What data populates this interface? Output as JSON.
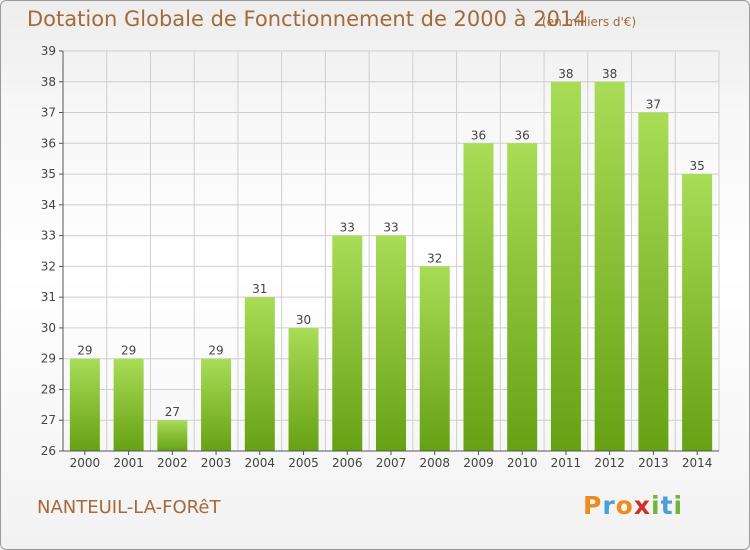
{
  "header": {
    "title": "Dotation Globale de Fonctionnement de 2000 à 2014",
    "unit": "(en milliers d'€)"
  },
  "footer": {
    "commune": "NANTEUIL-LA-FORêT",
    "logo_letters": [
      "P",
      "r",
      "o",
      "x",
      "i",
      "t",
      "i"
    ],
    "logo_colors": [
      "#ef8a1f",
      "#4a9fd8",
      "#ef8a1f",
      "#d2312a",
      "#72b43a",
      "#4a9fd8",
      "#72b43a"
    ]
  },
  "colors": {
    "bar_light": "#a9dc57",
    "bar_dark": "#66a114",
    "grid": "#cfcfcf",
    "text": "#a36a3a"
  },
  "chart_data": {
    "type": "bar",
    "title": "Dotation Globale de Fonctionnement de 2000 à 2014",
    "categories": [
      "2000",
      "2001",
      "2002",
      "2003",
      "2004",
      "2005",
      "2006",
      "2007",
      "2008",
      "2009",
      "2010",
      "2011",
      "2012",
      "2013",
      "2014"
    ],
    "values": [
      29,
      29,
      27,
      29,
      31,
      30,
      33,
      33,
      32,
      36,
      36,
      38,
      38,
      37,
      35
    ],
    "data_labels": [
      "29",
      "29",
      "27",
      "29",
      "31",
      "30",
      "33",
      "33",
      "32",
      "36",
      "36",
      "38",
      "38",
      "37",
      "35"
    ],
    "y_ticks": [
      26,
      27,
      28,
      29,
      30,
      31,
      32,
      33,
      34,
      35,
      36,
      37,
      38,
      39
    ],
    "ylim": [
      26,
      39
    ],
    "grid": true,
    "legend": "none"
  }
}
